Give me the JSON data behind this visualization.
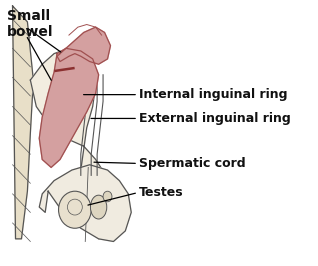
{
  "background_color": "#ffffff",
  "labels": {
    "small_bowel": "Small\nbowel",
    "internal_ring": "Internal inguinal ring",
    "external_ring": "External inguinal ring",
    "spermatic_cord": "Spermatic cord",
    "testes": "Testes"
  },
  "body_color": "#d4a0a0",
  "body_outline": "#a05050",
  "sketch_color": "#555555",
  "label_fontsize": 9,
  "small_bowel_fontsize": 10,
  "label_color": "#111111",
  "label_fontweight": "bold"
}
